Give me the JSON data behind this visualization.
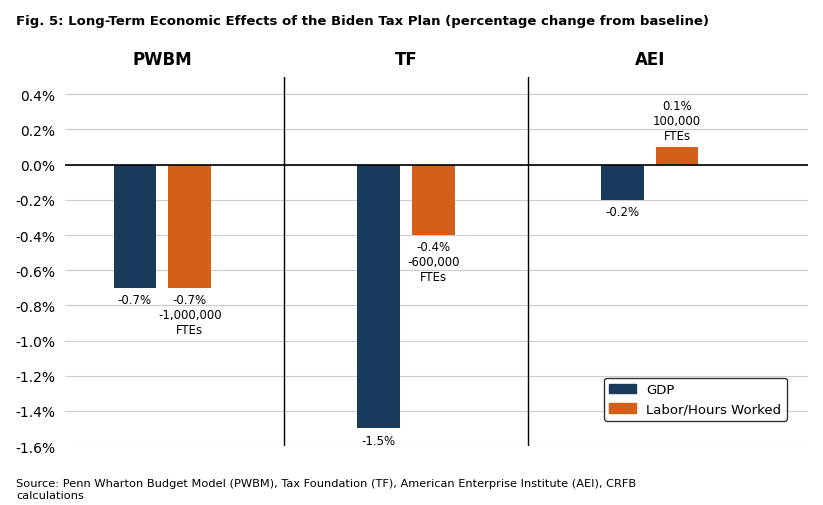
{
  "title": "Fig. 5: Long-Term Economic Effects of the Biden Tax Plan (percentage change from baseline)",
  "groups": [
    "PWBM",
    "TF",
    "AEI"
  ],
  "gdp_values": [
    -0.007,
    -0.015,
    -0.002
  ],
  "labor_values": [
    -0.007,
    -0.004,
    0.001
  ],
  "gdp_color": "#1a3a5c",
  "labor_color": "#d2601a",
  "bar_width": 0.35,
  "ylim": [
    -0.016,
    0.005
  ],
  "yticks": [
    -0.016,
    -0.014,
    -0.012,
    -0.01,
    -0.008,
    -0.006,
    -0.004,
    -0.002,
    0.0,
    0.002,
    0.004
  ],
  "ytick_labels": [
    "-1.6%",
    "-1.4%",
    "-1.2%",
    "-1.0%",
    "-0.8%",
    "-0.6%",
    "-0.4%",
    "-0.2%",
    "0.0%",
    "0.2%",
    "0.4%"
  ],
  "source_text": "Source: Penn Wharton Budget Model (PWBM), Tax Foundation (TF), American Enterprise Institute (AEI), CRFB\ncalculations",
  "gdp_label": "GDP",
  "labor_label": "Labor/Hours Worked",
  "annotations": {
    "PWBM_gdp": {
      "value": "-0.7%",
      "line2": null,
      "line3": null
    },
    "PWBM_labor": {
      "value": "-0.7%",
      "line2": "-1,000,000",
      "line3": "FTEs"
    },
    "TF_gdp": {
      "value": "-1.5%",
      "line2": null,
      "line3": null
    },
    "TF_labor": {
      "value": "-0.4%",
      "line2": "-600,000",
      "line3": "FTEs"
    },
    "AEI_gdp": {
      "value": "-0.2%",
      "line2": null,
      "line3": null
    },
    "AEI_labor": {
      "value": "0.1%",
      "line2": "100,000",
      "line3": "FTEs"
    }
  },
  "group_positions": [
    1,
    3,
    5
  ],
  "background_color": "#ffffff"
}
